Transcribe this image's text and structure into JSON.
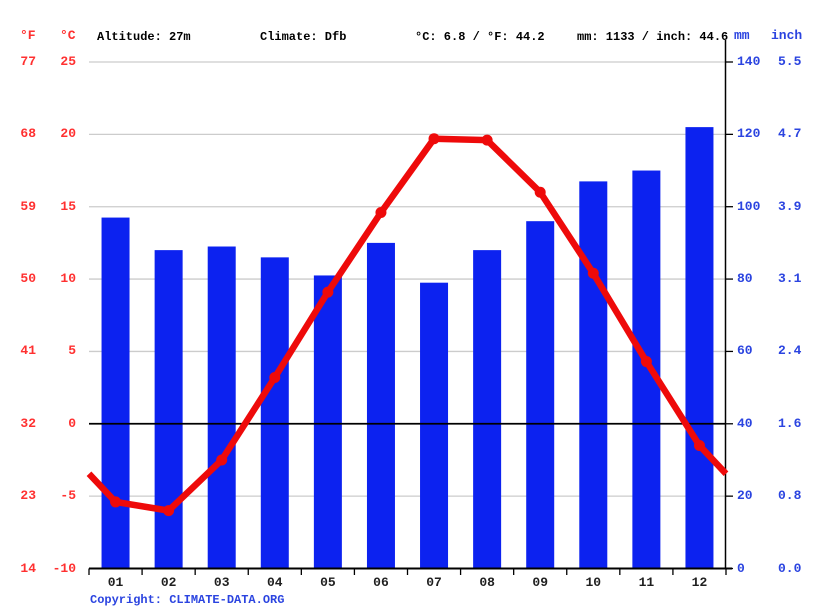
{
  "header": {
    "f_label": "°F",
    "c_label": "°C",
    "altitude": "Altitude: 27m",
    "climate": "Climate: Dfb",
    "temp_summary": "°C: 6.8 / °F: 44.2",
    "precip_summary": "mm: 1133 / inch: 44.6",
    "mm_label": "mm",
    "inch_label": "inch"
  },
  "footer": {
    "copyright_label": "Copyright: ",
    "copyright_link": "CLIMATE-DATA.ORG"
  },
  "colors": {
    "bar_blue": "#0c22f0",
    "line_red": "#ee0a0a",
    "red_text": "#ff3030",
    "blue_text": "#2b44e0",
    "grid_gray": "#cccccc",
    "axis_black": "#000000",
    "month_text": "#1f1f1f"
  },
  "chart_data": {
    "type": "bar+line climate graph",
    "categories": [
      "01",
      "02",
      "03",
      "04",
      "05",
      "06",
      "07",
      "08",
      "09",
      "10",
      "11",
      "12"
    ],
    "series": [
      {
        "name": "precipitation_mm",
        "type": "bar",
        "values": [
          97,
          88,
          89,
          86,
          81,
          90,
          79,
          88,
          96,
          107,
          110,
          122
        ],
        "total_mm": 1133
      },
      {
        "name": "temperature_c",
        "type": "line",
        "values": [
          -5.4,
          -6.0,
          -2.5,
          3.2,
          9.1,
          14.6,
          19.7,
          19.6,
          16.0,
          10.4,
          4.3,
          -1.5
        ],
        "annual_mean_c": 6.8
      }
    ],
    "axes": {
      "celsius_ticks": [
        "25",
        "20",
        "15",
        "10",
        "5",
        "0",
        "-5",
        "-10"
      ],
      "fahrenheit_ticks": [
        "77",
        "68",
        "59",
        "50",
        "41",
        "32",
        "23",
        "14"
      ],
      "mm_ticks": [
        "140",
        "120",
        "100",
        "80",
        "60",
        "40",
        "20",
        "0"
      ],
      "inch_ticks": [
        "5.5",
        "4.7",
        "3.9",
        "3.1",
        "2.4",
        "1.6",
        "0.8",
        "0.0"
      ]
    },
    "temp_axis_range_c": [
      -10,
      25
    ],
    "precip_axis_range_mm": [
      0,
      140
    ],
    "grid": true,
    "legend_position": "none",
    "notes": "zero-celsius gridline and x baseline are black; other gridlines gray; red temp line has round month markers and extends to plot edges at Dec/Jan midpoint"
  }
}
